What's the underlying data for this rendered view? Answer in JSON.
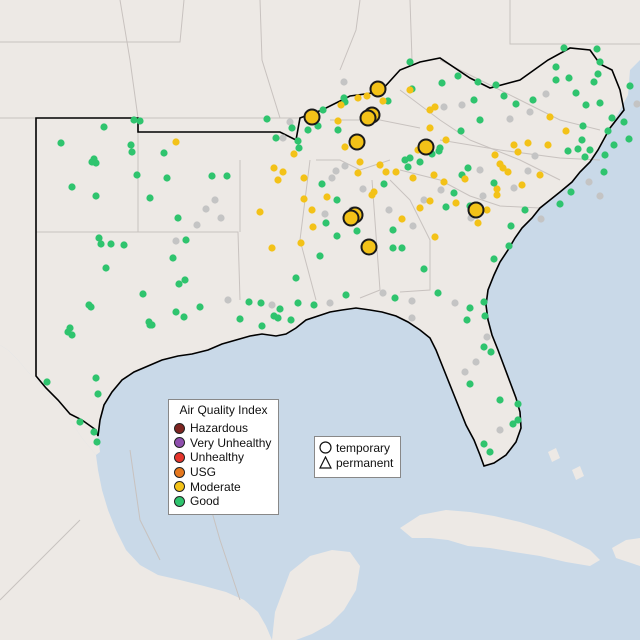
{
  "map": {
    "colors": {
      "water": "#c9d9e8",
      "land": "#ede9e5",
      "border": "#c8c2bf",
      "region_outline": "#000000",
      "monitor_outline": "#1a1a1a"
    }
  },
  "legend": {
    "title": "Air Quality Index",
    "items": [
      {
        "label": "Hazardous",
        "color": "#7e2520"
      },
      {
        "label": "Very Unhealthy",
        "color": "#8f4fae"
      },
      {
        "label": "Unhealthy",
        "color": "#e5352c"
      },
      {
        "label": "USG",
        "color": "#e6781e"
      },
      {
        "label": "Moderate",
        "color": "#f3c218"
      },
      {
        "label": "Good",
        "color": "#2fc46e"
      }
    ]
  },
  "shape_legend": {
    "items": [
      {
        "label": "temporary",
        "shape": "circle"
      },
      {
        "label": "permanent",
        "shape": "triangle"
      }
    ]
  },
  "monitors_summary": {
    "temporary_moderate_count": 10,
    "icon_no_data": "gray-dot",
    "no_data_color": "#c4c4c4"
  }
}
